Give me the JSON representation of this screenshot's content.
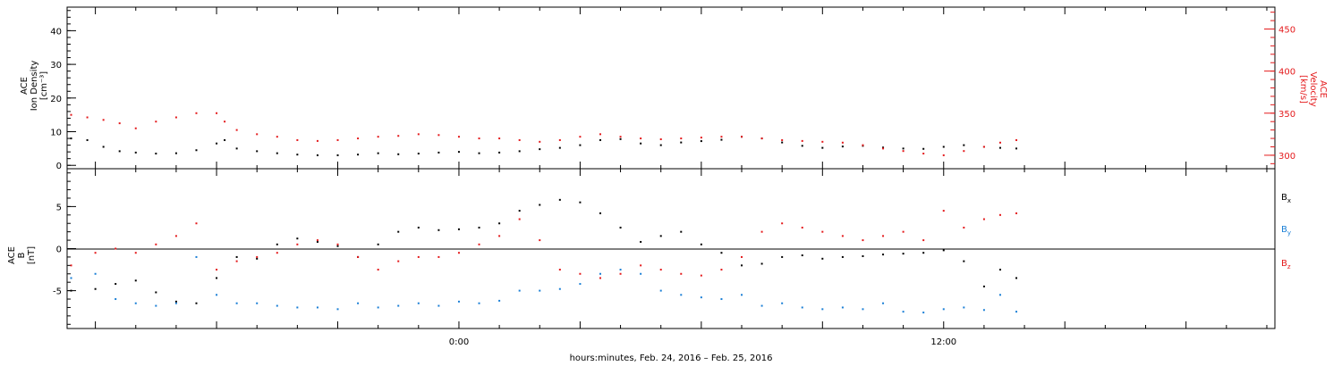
{
  "page": {
    "footer_label": "hours:minutes, Feb. 24, 2016 – Feb. 25, 2016"
  },
  "colors": {
    "black": "#000000",
    "red": "#e41a1c",
    "blue": "#1a7fd6",
    "zero_line": "#000000"
  },
  "chart_data": [
    {
      "type": "scatter",
      "panel": "top",
      "title": "",
      "x_ticks": [
        "0:00",
        "12:00"
      ],
      "x_tick_hours": [
        0,
        12
      ],
      "xlim_hours": [
        -9.7,
        20.2
      ],
      "left_axis": {
        "label_lines": [
          "ACE",
          "Ion Density",
          "[cm⁻³]"
        ],
        "ylim": [
          -1,
          47
        ],
        "ticks": [
          0,
          10,
          20,
          30,
          40
        ],
        "color": "#000000"
      },
      "right_axis": {
        "label_lines": [
          "ACE",
          "Velocity",
          "[km/s]"
        ],
        "ylim": [
          284,
          476
        ],
        "ticks": [
          300,
          350,
          400,
          450
        ],
        "color": "#e41a1c"
      },
      "series": [
        {
          "name": "",
          "axis": "left",
          "color": "#000000",
          "x_hours": [
            -9.6,
            -9.2,
            -8.8,
            -8.4,
            -8.0,
            -7.5,
            -7.0,
            -6.5,
            -6.0,
            -5.8,
            -5.5,
            -5.0,
            -4.5,
            -4.0,
            -3.5,
            -3.0,
            -2.5,
            -2.0,
            -1.5,
            -1.0,
            -0.5,
            0.0,
            0.5,
            1.0,
            1.5,
            2.0,
            2.5,
            3.0,
            3.5,
            4.0,
            4.5,
            5.0,
            5.5,
            6.0,
            6.5,
            7.0,
            7.5,
            8.0,
            8.5,
            9.0,
            9.5,
            10.0,
            10.5,
            11.0,
            11.5,
            12.0,
            12.5,
            13.0,
            13.4,
            13.8
          ],
          "values": [
            8,
            7.5,
            5.5,
            4.2,
            3.8,
            3.5,
            3.6,
            4.5,
            6.5,
            7.5,
            5,
            4.2,
            3.6,
            3.2,
            3.0,
            3.0,
            3.2,
            3.6,
            3.3,
            3.5,
            3.8,
            4.0,
            3.6,
            3.8,
            4.2,
            4.8,
            5.2,
            6.0,
            7.5,
            7.8,
            6.5,
            6.0,
            6.8,
            7.2,
            7.6,
            8.5,
            8.0,
            6.8,
            5.8,
            5.2,
            5.6,
            5.8,
            5.3,
            5.0,
            4.9,
            5.5,
            6.0,
            5.5,
            5.2,
            5.0
          ]
        },
        {
          "name": "",
          "axis": "right",
          "color": "#e41a1c",
          "x_hours": [
            -9.6,
            -9.2,
            -8.8,
            -8.4,
            -8.0,
            -7.5,
            -7.0,
            -6.5,
            -6.0,
            -5.8,
            -5.5,
            -5.0,
            -4.5,
            -4.0,
            -3.5,
            -3.0,
            -2.5,
            -2.0,
            -1.5,
            -1.0,
            -0.5,
            0.0,
            0.5,
            1.0,
            1.5,
            2.0,
            2.5,
            3.0,
            3.5,
            4.0,
            4.5,
            5.0,
            5.5,
            6.0,
            6.5,
            7.0,
            7.5,
            8.0,
            8.5,
            9.0,
            9.5,
            10.0,
            10.5,
            11.0,
            11.5,
            12.0,
            12.5,
            13.0,
            13.4,
            13.8
          ],
          "values": [
            348,
            345,
            342,
            338,
            332,
            340,
            345,
            350,
            350,
            340,
            330,
            325,
            322,
            318,
            317,
            318,
            320,
            322,
            323,
            325,
            324,
            322,
            320,
            320,
            318,
            316,
            318,
            322,
            325,
            322,
            320,
            319,
            320,
            321,
            322,
            322,
            320,
            318,
            317,
            316,
            315,
            312,
            308,
            305,
            302,
            300,
            305,
            310,
            315,
            318
          ]
        }
      ]
    },
    {
      "type": "scatter",
      "panel": "bottom",
      "title": "",
      "x_ticks": [
        "0:00",
        "12:00"
      ],
      "x_tick_hours": [
        0,
        12
      ],
      "xlim_hours": [
        -9.7,
        20.2
      ],
      "left_axis": {
        "label_lines": [
          "ACE",
          "B",
          "[nT]"
        ],
        "ylim": [
          -9.5,
          9.5
        ],
        "ticks": [
          -5,
          0,
          5
        ],
        "color": "#000000"
      },
      "legend": [
        {
          "label": "B",
          "subscript": "x",
          "color": "#000000"
        },
        {
          "label": "B",
          "subscript": "y",
          "color": "#1a7fd6"
        },
        {
          "label": "B",
          "subscript": "z",
          "color": "#e41a1c"
        }
      ],
      "series": [
        {
          "name": "Bx",
          "color": "#000000",
          "x_hours": [
            -9.6,
            -9.0,
            -8.5,
            -8.0,
            -7.5,
            -7.0,
            -6.5,
            -6.0,
            -5.5,
            -5.0,
            -4.5,
            -4.0,
            -3.5,
            -3.0,
            -2.5,
            -2.0,
            -1.5,
            -1.0,
            -0.5,
            0.0,
            0.5,
            1.0,
            1.5,
            2.0,
            2.5,
            3.0,
            3.5,
            4.0,
            4.5,
            5.0,
            5.5,
            6.0,
            6.5,
            7.0,
            7.5,
            8.0,
            8.5,
            9.0,
            9.5,
            10.0,
            10.5,
            11.0,
            11.5,
            12.0,
            12.5,
            13.0,
            13.4,
            13.8
          ],
          "values": [
            -5,
            -4.8,
            -4.2,
            -3.8,
            -5.2,
            -6.3,
            -6.5,
            -3.5,
            -1.0,
            -1.2,
            0.5,
            1.2,
            0.8,
            0.3,
            -1.0,
            0.5,
            2.0,
            2.5,
            2.2,
            2.3,
            2.5,
            3.0,
            4.5,
            5.2,
            5.8,
            5.5,
            4.2,
            2.5,
            0.8,
            1.5,
            2.0,
            0.5,
            -0.5,
            -2.0,
            -1.8,
            -1.0,
            -0.8,
            -1.2,
            -1.0,
            -0.9,
            -0.7,
            -0.6,
            -0.5,
            -0.2,
            -1.5,
            -4.5,
            -2.5,
            -3.5
          ]
        },
        {
          "name": "By",
          "color": "#1a7fd6",
          "x_hours": [
            -9.6,
            -9.0,
            -8.5,
            -8.0,
            -7.5,
            -7.0,
            -6.5,
            -6.0,
            -5.5,
            -5.0,
            -4.5,
            -4.0,
            -3.5,
            -3.0,
            -2.5,
            -2.0,
            -1.5,
            -1.0,
            -0.5,
            0.0,
            0.5,
            1.0,
            1.5,
            2.0,
            2.5,
            3.0,
            3.5,
            4.0,
            4.5,
            5.0,
            5.5,
            6.0,
            6.5,
            7.0,
            7.5,
            8.0,
            8.5,
            9.0,
            9.5,
            10.0,
            10.5,
            11.0,
            11.5,
            12.0,
            12.5,
            13.0,
            13.4,
            13.8
          ],
          "values": [
            -3.5,
            -3.0,
            -6.0,
            -6.5,
            -6.8,
            -6.5,
            -1.0,
            -5.5,
            -6.5,
            -6.5,
            -6.8,
            -7.0,
            -7.0,
            -7.2,
            -6.5,
            -7.0,
            -6.8,
            -6.5,
            -6.8,
            -6.3,
            -6.5,
            -6.2,
            -5.0,
            -5.0,
            -4.8,
            -4.2,
            -3.0,
            -2.5,
            -3.0,
            -5.0,
            -5.5,
            -5.8,
            -6.0,
            -5.5,
            -6.8,
            -6.5,
            -7.0,
            -7.2,
            -7.0,
            -7.2,
            -6.5,
            -7.5,
            -7.6,
            -7.2,
            -7.0,
            -7.3,
            -5.5,
            -7.5
          ]
        },
        {
          "name": "Bz",
          "color": "#e41a1c",
          "x_hours": [
            -9.6,
            -9.0,
            -8.5,
            -8.0,
            -7.5,
            -7.0,
            -6.5,
            -6.0,
            -5.5,
            -5.0,
            -4.5,
            -4.0,
            -3.5,
            -3.0,
            -2.5,
            -2.0,
            -1.5,
            -1.0,
            -0.5,
            0.0,
            0.5,
            1.0,
            1.5,
            2.0,
            2.5,
            3.0,
            3.5,
            4.0,
            4.5,
            5.0,
            5.5,
            6.0,
            6.5,
            7.0,
            7.5,
            8.0,
            8.5,
            9.0,
            9.5,
            10.0,
            10.5,
            11.0,
            11.5,
            12.0,
            12.5,
            13.0,
            13.4,
            13.8
          ],
          "values": [
            -2.0,
            -0.5,
            0.0,
            -0.5,
            0.5,
            1.5,
            3.0,
            -2.5,
            -1.5,
            -1.0,
            -0.5,
            0.5,
            1.0,
            0.5,
            -1.0,
            -2.5,
            -1.5,
            -1.0,
            -1.0,
            -0.5,
            0.5,
            1.5,
            3.5,
            1.0,
            -2.5,
            -3.0,
            -3.5,
            -3.0,
            -2.0,
            -2.5,
            -3.0,
            -3.2,
            -2.5,
            -1.0,
            2.0,
            3.0,
            2.5,
            2.0,
            1.5,
            1.0,
            1.5,
            2.0,
            1.0,
            4.5,
            2.5,
            3.5,
            4.0,
            4.2
          ]
        }
      ]
    }
  ]
}
